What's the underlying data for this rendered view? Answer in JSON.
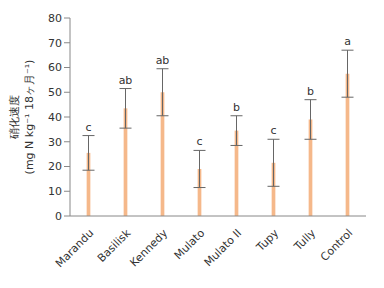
{
  "chart_data": {
    "type": "bar",
    "categories": [
      "Marandu",
      "Basilisk",
      "Kennedy",
      "Mulato",
      "Mulato II",
      "Tupy",
      "Tully",
      "Control"
    ],
    "values": [
      25.5,
      43.5,
      50,
      19,
      34.5,
      21.5,
      39,
      57.5
    ],
    "error": [
      7,
      8,
      9.5,
      7.5,
      6,
      9.5,
      8,
      9.5
    ],
    "annotations": [
      "c",
      "ab",
      "ab",
      "c",
      "b",
      "c",
      "b",
      "a"
    ],
    "color": "#f5b88a",
    "ylabel": [
      "硝化速度",
      "(mg N kg⁻¹ 18ヶ月⁻¹)"
    ],
    "ylim": [
      0,
      80
    ],
    "yticks": [
      0,
      10,
      20,
      30,
      40,
      50,
      60,
      70,
      80
    ],
    "grid": false
  }
}
